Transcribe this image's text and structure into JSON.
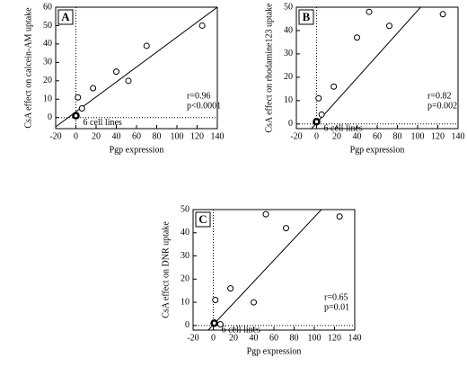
{
  "chart_data": [
    {
      "type": "scatter",
      "label": "A",
      "x_label": "Pgp expression",
      "y_label": "CsA effect on calcein-AM uptake",
      "xlim": [
        -20,
        140
      ],
      "xticks": [
        -20,
        0,
        20,
        40,
        60,
        80,
        100,
        120,
        140
      ],
      "ylim": [
        -6,
        60
      ],
      "yticks": [
        0,
        10,
        20,
        30,
        40,
        50,
        60
      ],
      "x": [
        2,
        6,
        17,
        40,
        52,
        70,
        125
      ],
      "y": [
        11,
        5,
        16,
        25,
        20,
        39,
        50
      ],
      "cluster": {
        "x": [
          0
        ],
        "y": [
          1
        ],
        "label": "6  cell lines"
      },
      "fit": {
        "x": [
          -20,
          140
        ],
        "y": [
          -5,
          60
        ]
      },
      "stats": [
        "r=0.96",
        "p<0.0001"
      ],
      "color": "#000000"
    },
    {
      "type": "scatter",
      "label": "B",
      "x_label": "Pgp expression",
      "y_label": "CsA effect on rhodamine123 uptake",
      "xlim": [
        -20,
        140
      ],
      "xticks": [
        -20,
        0,
        20,
        40,
        60,
        80,
        100,
        120,
        140
      ],
      "ylim": [
        -2,
        50
      ],
      "yticks": [
        0,
        10,
        20,
        30,
        40,
        50
      ],
      "x": [
        2,
        5,
        17,
        40,
        52,
        72,
        125
      ],
      "y": [
        11,
        4,
        16,
        37,
        48,
        42,
        47
      ],
      "cluster": {
        "x": [
          0
        ],
        "y": [
          1
        ],
        "label": "6  cell lines"
      },
      "fit": {
        "x": [
          -5,
          103
        ],
        "y": [
          -2,
          50
        ]
      },
      "stats": [
        "r=0.82",
        "p=0.002"
      ],
      "color": "#000000"
    },
    {
      "type": "scatter",
      "label": "C",
      "x_label": "Pgp expression",
      "y_label": "CsA effect on DNR uptake",
      "xlim": [
        -20,
        140
      ],
      "xticks": [
        -20,
        0,
        20,
        40,
        60,
        80,
        100,
        120,
        140
      ],
      "ylim": [
        -2,
        50
      ],
      "yticks": [
        0,
        10,
        20,
        30,
        40,
        50
      ],
      "x": [
        2,
        7,
        17,
        40,
        52,
        72,
        125
      ],
      "y": [
        11,
        0.5,
        16,
        10,
        48,
        42,
        47
      ],
      "cluster": {
        "x": [
          1
        ],
        "y": [
          1
        ],
        "label": "6  cell lines"
      },
      "fit": {
        "x": [
          -5,
          107
        ],
        "y": [
          -2,
          50
        ]
      },
      "stats": [
        "r=0.65",
        "p=0.01"
      ],
      "color": "#000000"
    }
  ]
}
